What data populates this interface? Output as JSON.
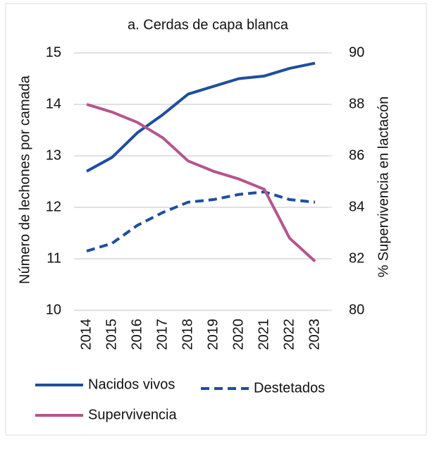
{
  "chart_data": {
    "type": "line",
    "title": "a. Cerdas de capa blanca",
    "ylabel": "Número de lechones por camada",
    "y2label": "% Supervivencia en lactacón",
    "categories": [
      "2014",
      "2015",
      "2016",
      "2017",
      "2018",
      "2019",
      "2020",
      "2021",
      "2022",
      "2023"
    ],
    "ylim": [
      10,
      15
    ],
    "yticks": [
      10,
      11,
      12,
      13,
      14,
      15
    ],
    "y2lim": [
      80,
      90
    ],
    "y2ticks": [
      80,
      82,
      84,
      86,
      88,
      90
    ],
    "grid": true,
    "legend": "bottom",
    "series": [
      {
        "name": "Nacidos vivos",
        "color": "#1f4e9c",
        "line_style": "solid",
        "values": [
          12.7,
          12.97,
          13.45,
          13.8,
          14.2,
          14.35,
          14.5,
          14.55,
          14.7,
          14.8
        ]
      },
      {
        "name": "Destetados",
        "color": "#1f4e9c",
        "line_style": "dashed",
        "values": [
          11.15,
          11.3,
          11.65,
          11.9,
          12.1,
          12.15,
          12.25,
          12.3,
          12.15,
          12.1
        ]
      },
      {
        "name": "Supervivencia",
        "color": "#b5558f",
        "line_style": "solid",
        "axis": "y2",
        "values": [
          88.0,
          87.7,
          87.3,
          86.7,
          85.8,
          85.4,
          85.1,
          84.7,
          82.8,
          81.9
        ]
      }
    ]
  }
}
